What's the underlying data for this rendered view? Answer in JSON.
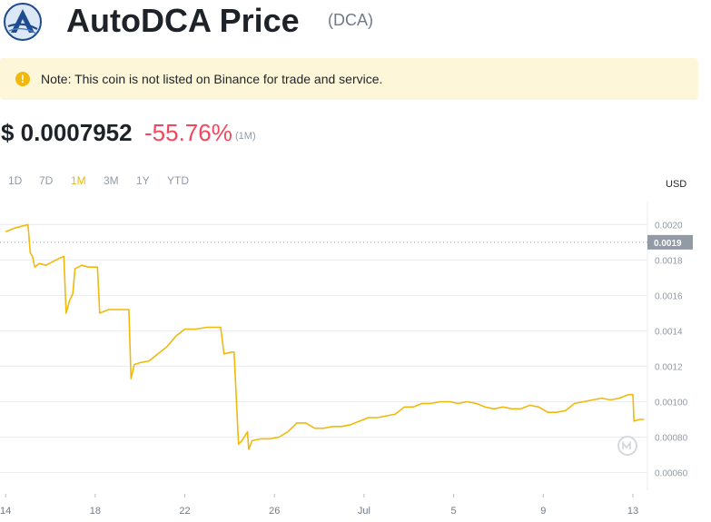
{
  "header": {
    "title": "AutoDCA Price",
    "ticker": "(DCA)"
  },
  "note": {
    "text": "Note: This coin is not listed on Binance for trade and service.",
    "icon": "exclamation-circle-icon"
  },
  "price": {
    "value": "$ 0.0007952",
    "change": "-55.76%",
    "period": "(1M)"
  },
  "range_tabs": [
    {
      "label": "1D",
      "active": false
    },
    {
      "label": "7D",
      "active": false
    },
    {
      "label": "1M",
      "active": true
    },
    {
      "label": "3M",
      "active": false
    },
    {
      "label": "1Y",
      "active": false
    },
    {
      "label": "YTD",
      "active": false
    }
  ],
  "currency": "USD",
  "colors": {
    "line": "#f0b90b",
    "down": "#f6465d",
    "label_bg": "#929aa5"
  },
  "chart_data": {
    "type": "line",
    "y_ticks": [
      "0.0020",
      "0.0018",
      "0.0016",
      "0.0014",
      "0.0012",
      "0.00100",
      "0.00080",
      "0.00060"
    ],
    "x_ticks": [
      "14",
      "18",
      "22",
      "26",
      "Jul",
      "5",
      "9",
      "13"
    ],
    "ylim": [
      0.0005,
      0.00213
    ],
    "current_label": "0.0019",
    "current_value": 0.0019,
    "grid": true,
    "series": [
      {
        "points": [
          [
            0.0,
            0.00196
          ],
          [
            0.4,
            0.00198
          ],
          [
            0.7,
            0.00199
          ],
          [
            1.0,
            0.002
          ],
          [
            1.1,
            0.00184
          ],
          [
            1.2,
            0.00182
          ],
          [
            1.3,
            0.00176
          ],
          [
            1.5,
            0.00178
          ],
          [
            1.8,
            0.00177
          ],
          [
            2.1,
            0.00179
          ],
          [
            2.4,
            0.00181
          ],
          [
            2.6,
            0.00182
          ],
          [
            2.7,
            0.0015
          ],
          [
            2.85,
            0.00157
          ],
          [
            3.0,
            0.00161
          ],
          [
            3.1,
            0.00175
          ],
          [
            3.4,
            0.00177
          ],
          [
            3.7,
            0.00176
          ],
          [
            4.1,
            0.00176
          ],
          [
            4.2,
            0.0015
          ],
          [
            4.6,
            0.00152
          ],
          [
            5.1,
            0.00152
          ],
          [
            5.5,
            0.00152
          ],
          [
            5.6,
            0.00113
          ],
          [
            5.75,
            0.00121
          ],
          [
            6.0,
            0.00122
          ],
          [
            6.4,
            0.00123
          ],
          [
            6.8,
            0.00127
          ],
          [
            7.2,
            0.00131
          ],
          [
            7.6,
            0.00137
          ],
          [
            8.0,
            0.00141
          ],
          [
            8.5,
            0.00141
          ],
          [
            9.0,
            0.00142
          ],
          [
            9.4,
            0.00142
          ],
          [
            9.6,
            0.00142
          ],
          [
            9.75,
            0.00127
          ],
          [
            10.1,
            0.00128
          ],
          [
            10.2,
            0.00128
          ],
          [
            10.4,
            0.00076
          ],
          [
            10.55,
            0.00078
          ],
          [
            10.8,
            0.00083
          ],
          [
            10.85,
            0.00073
          ],
          [
            11.0,
            0.00078
          ],
          [
            11.4,
            0.00079
          ],
          [
            11.8,
            0.00079
          ],
          [
            12.2,
            0.0008
          ],
          [
            12.6,
            0.00083
          ],
          [
            13.0,
            0.00088
          ],
          [
            13.4,
            0.00088
          ],
          [
            13.8,
            0.00085
          ],
          [
            14.2,
            0.00085
          ],
          [
            14.6,
            0.00086
          ],
          [
            15.0,
            0.00086
          ],
          [
            15.4,
            0.00087
          ],
          [
            15.8,
            0.00089
          ],
          [
            16.2,
            0.00091
          ],
          [
            16.6,
            0.00091
          ],
          [
            17.0,
            0.00092
          ],
          [
            17.4,
            0.00093
          ],
          [
            17.8,
            0.00097
          ],
          [
            18.2,
            0.00097
          ],
          [
            18.6,
            0.00099
          ],
          [
            19.0,
            0.00099
          ],
          [
            19.4,
            0.001
          ],
          [
            19.8,
            0.001
          ],
          [
            20.2,
            0.00099
          ],
          [
            20.6,
            0.001
          ],
          [
            21.0,
            0.00099
          ],
          [
            21.4,
            0.00097
          ],
          [
            21.8,
            0.00096
          ],
          [
            22.2,
            0.00097
          ],
          [
            22.6,
            0.00096
          ],
          [
            23.0,
            0.00096
          ],
          [
            23.4,
            0.00098
          ],
          [
            23.8,
            0.00097
          ],
          [
            24.2,
            0.00094
          ],
          [
            24.6,
            0.00094
          ],
          [
            25.0,
            0.00095
          ],
          [
            25.4,
            0.00099
          ],
          [
            25.8,
            0.001
          ],
          [
            26.2,
            0.00101
          ],
          [
            26.6,
            0.00102
          ],
          [
            27.0,
            0.00101
          ],
          [
            27.4,
            0.00102
          ],
          [
            27.8,
            0.00104
          ],
          [
            28.0,
            0.00104
          ],
          [
            28.05,
            0.00089
          ],
          [
            28.3,
            0.0009
          ],
          [
            28.5,
            0.0009
          ]
        ]
      }
    ],
    "x_range": [
      -0.25,
      28.65
    ]
  }
}
